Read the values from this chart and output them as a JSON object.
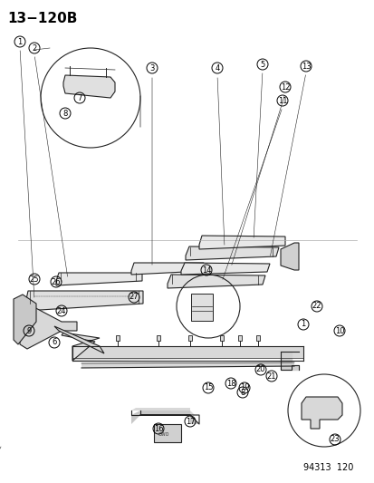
{
  "title": "13−120B",
  "footer": "94313  120",
  "bg_color": "#ffffff",
  "title_fontsize": 11,
  "footer_fontsize": 7,
  "part_label_fontsize": 6.5,
  "diagram_color": "#333333",
  "line_color": "#222222"
}
